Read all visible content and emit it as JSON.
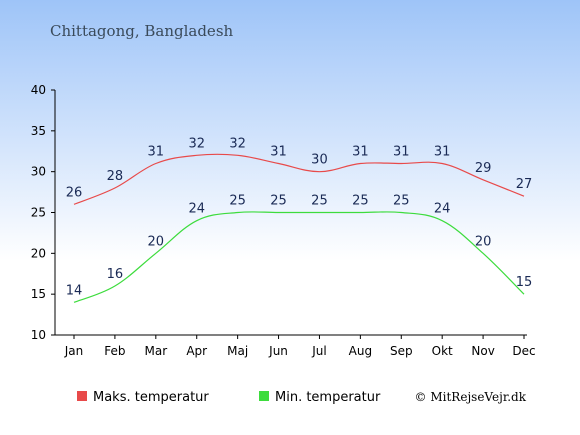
{
  "title": "Chittagong, Bangladesh",
  "copyright": "© MitRejseVejr.dk",
  "colors": {
    "bg_top": "#9ec4f8",
    "bg_bottom": "#ffffff",
    "max": "#e84a4a",
    "min": "#3ddc3d",
    "label": "#1a2a55"
  },
  "chart_data": {
    "type": "line",
    "categories": [
      "Jan",
      "Feb",
      "Mar",
      "Apr",
      "Maj",
      "Jun",
      "Jul",
      "Aug",
      "Sep",
      "Okt",
      "Nov",
      "Dec"
    ],
    "series": [
      {
        "name": "Maks. temperatur",
        "color": "#e84a4a",
        "values": [
          26,
          28,
          31,
          32,
          32,
          31,
          30,
          31,
          31,
          31,
          29,
          27
        ]
      },
      {
        "name": "Min. temperatur",
        "color": "#3ddc3d",
        "values": [
          14,
          16,
          20,
          24,
          25,
          25,
          25,
          25,
          25,
          24,
          20,
          15
        ]
      }
    ],
    "ylim": [
      10,
      40
    ],
    "yticks": [
      10,
      15,
      20,
      25,
      30,
      35,
      40
    ],
    "grid": false,
    "legend_position": "bottom"
  }
}
